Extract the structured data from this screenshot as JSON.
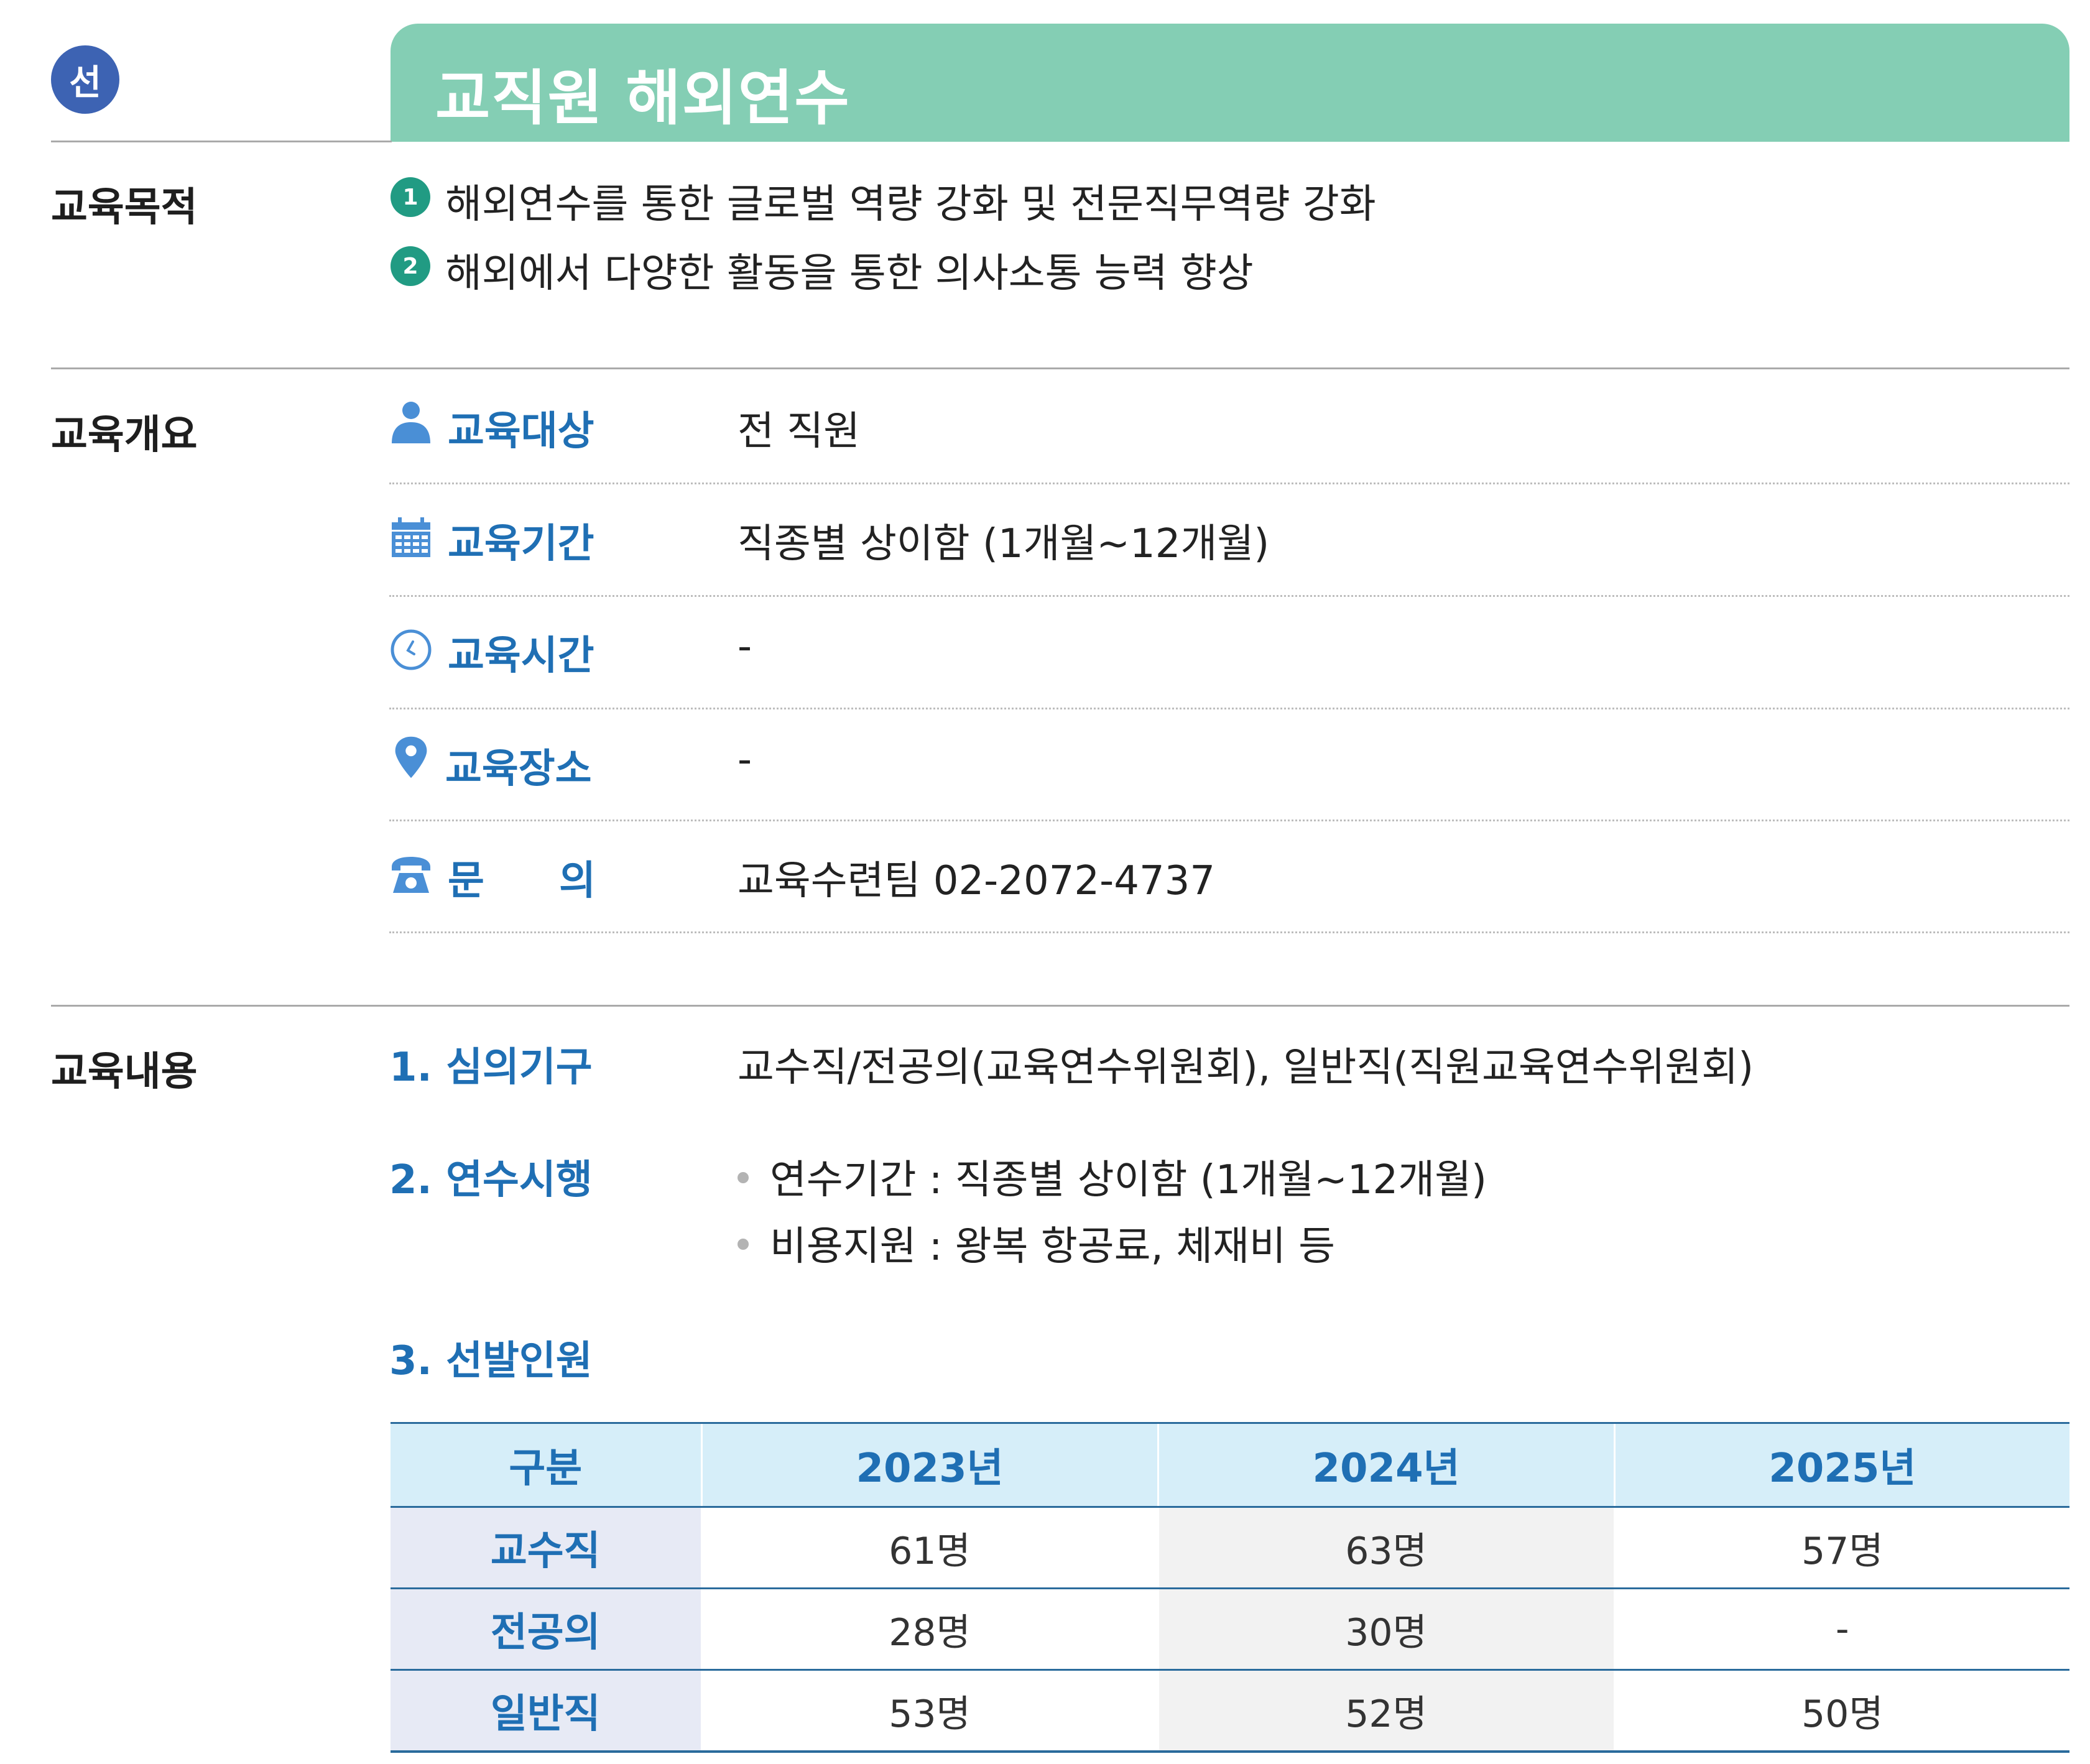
{
  "header": {
    "badge": "선",
    "title": "교직원 해외연수"
  },
  "purpose": {
    "label": "교육목적",
    "items": [
      {
        "num": "1",
        "text": "해외연수를 통한 글로벌 역량 강화 및 전문직무역량 강화"
      },
      {
        "num": "2",
        "text": "해외에서 다양한 활동을 통한 의사소통 능력 향상"
      }
    ]
  },
  "overview": {
    "label": "교육개요",
    "rows": [
      {
        "icon": "person-icon",
        "label": "교육대상",
        "value": "전 직원"
      },
      {
        "icon": "calendar-icon",
        "label": "교육기간",
        "value": "직종별 상이함 (1개월~12개월)"
      },
      {
        "icon": "clock-icon",
        "label": "교육시간",
        "value": "-"
      },
      {
        "icon": "location-pin-icon",
        "label": "교육장소",
        "value": "-"
      },
      {
        "icon": "telephone-icon",
        "label_chars": [
          "문",
          "의"
        ],
        "value": "교육수련팀 02-2072-4737"
      }
    ]
  },
  "contents": {
    "label": "교육내용",
    "deliberation": {
      "label": "1. 심의기구",
      "value": "교수직/전공의(교육연수위원회), 일반직(직원교육연수위원회)"
    },
    "execution": {
      "label": "2. 연수시행",
      "bullets": [
        "연수기간 : 직종별 상이함 (1개월~12개월)",
        "비용지원 : 왕복 항공료, 체재비 등"
      ]
    },
    "selection": {
      "label": "3. 선발인원",
      "headers": [
        "구분",
        "2023년",
        "2024년",
        "2025년"
      ],
      "rows": [
        {
          "category": "교수직",
          "values": [
            "61명",
            "63명",
            "57명"
          ]
        },
        {
          "category": "전공의",
          "values": [
            "28명",
            "30명",
            "-"
          ]
        },
        {
          "category": "일반직",
          "values": [
            "53명",
            "52명",
            "50명"
          ]
        }
      ]
    }
  },
  "colors": {
    "title_bar": "#84ceb4",
    "badge": "#3d63b3",
    "accent_blue": "#1f6fb4",
    "number_circle": "#219b83",
    "table_header_bg": "#d6eef9",
    "row_header_bg": "#e7eaf5"
  }
}
